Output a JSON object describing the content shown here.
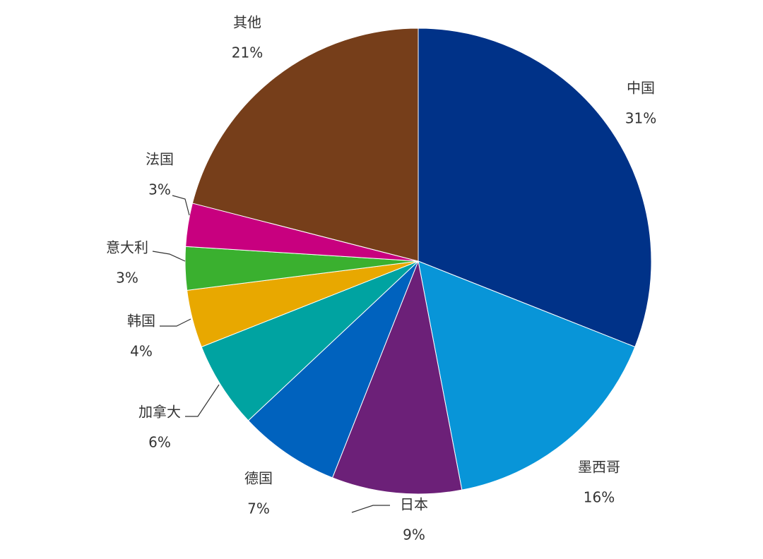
{
  "chart_data": {
    "type": "pie",
    "categories": [
      "中国",
      "墨西哥",
      "日本",
      "德国",
      "加拿大",
      "韩国",
      "意大利",
      "法国",
      "其他"
    ],
    "values": [
      31,
      16,
      9,
      7,
      6,
      4,
      3,
      3,
      21
    ],
    "value_labels": [
      "31%",
      "16%",
      "9%",
      "7%",
      "6%",
      "4%",
      "3%",
      "3%",
      "21%"
    ],
    "colors": [
      "#003288",
      "#0895d8",
      "#6c2078",
      "#0062be",
      "#00a3a1",
      "#e8a800",
      "#3ab02f",
      "#c8007f",
      "#763e1a"
    ]
  }
}
